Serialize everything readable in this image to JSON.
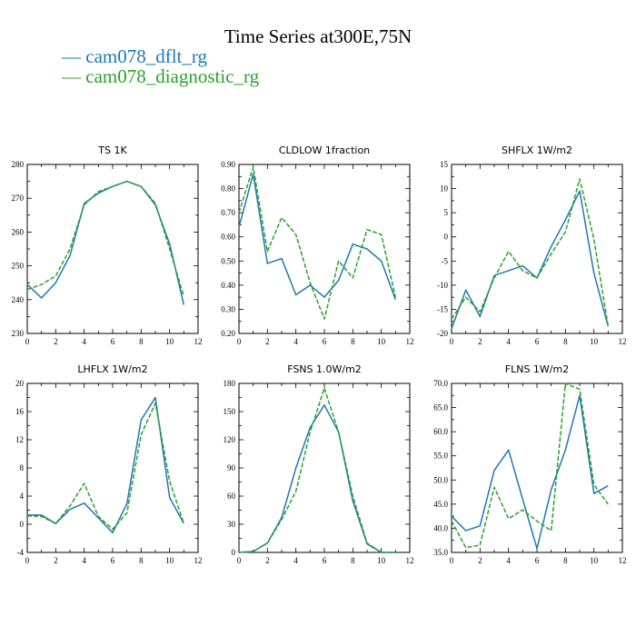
{
  "title": "Time Series at300E,75N",
  "legend": [
    {
      "label": "— cam078_dflt_rg",
      "color": "#1f77b4"
    },
    {
      "label": "— cam078_diagnostic_rg",
      "color": "#2ca02c"
    }
  ],
  "chart_data": [
    {
      "type": "line",
      "title": "TS   1K",
      "xlim": [
        0,
        12
      ],
      "xticks": [
        "0",
        "2",
        "4",
        "6",
        "8",
        "10",
        "12"
      ],
      "ylim": [
        230,
        280
      ],
      "yticks": [
        "230",
        "240",
        "250",
        "260",
        "270",
        "280"
      ],
      "x": [
        0,
        1,
        2,
        3,
        4,
        5,
        6,
        7,
        8,
        9,
        10,
        11
      ],
      "series": [
        {
          "name": "cam078_dflt_rg",
          "color": "#1f77b4",
          "dash": "solid",
          "values": [
            244.5,
            240.5,
            245,
            253,
            268.5,
            271.5,
            273.5,
            275,
            273.5,
            268,
            256.5,
            238.5
          ]
        },
        {
          "name": "cam078_diagnostic_rg",
          "color": "#2ca02c",
          "dash": "dashed",
          "values": [
            243,
            244.5,
            247,
            255,
            268,
            272,
            273.5,
            275,
            273.5,
            268.5,
            255,
            241
          ]
        }
      ]
    },
    {
      "type": "line",
      "title": "CLDLOW   1fraction",
      "xlim": [
        0,
        12
      ],
      "xticks": [
        "0",
        "2",
        "4",
        "6",
        "8",
        "10",
        "12"
      ],
      "ylim": [
        0.2,
        0.9
      ],
      "yticks": [
        "0.20",
        "0.30",
        "0.40",
        "0.50",
        "0.60",
        "0.70",
        "0.80",
        "0.90"
      ],
      "x": [
        0,
        1,
        2,
        3,
        4,
        5,
        6,
        7,
        8,
        9,
        10,
        11
      ],
      "series": [
        {
          "name": "cam078_dflt_rg",
          "color": "#1f77b4",
          "dash": "solid",
          "values": [
            0.64,
            0.86,
            0.49,
            0.51,
            0.36,
            0.4,
            0.35,
            0.42,
            0.57,
            0.55,
            0.5,
            0.34
          ]
        },
        {
          "name": "cam078_diagnostic_rg",
          "color": "#2ca02c",
          "dash": "dashed",
          "values": [
            0.7,
            0.89,
            0.54,
            0.68,
            0.61,
            0.41,
            0.26,
            0.5,
            0.43,
            0.63,
            0.61,
            0.35
          ]
        }
      ]
    },
    {
      "type": "line",
      "title": "SHFLX   1W/m2",
      "xlim": [
        0,
        12
      ],
      "xticks": [
        "0",
        "2",
        "4",
        "6",
        "8",
        "10",
        "12"
      ],
      "ylim": [
        -20,
        15
      ],
      "yticks": [
        "-20",
        "-15",
        "-10",
        "-5",
        "0",
        "5",
        "10",
        "15"
      ],
      "x": [
        0,
        1,
        2,
        3,
        4,
        5,
        6,
        7,
        8,
        9,
        10,
        11
      ],
      "series": [
        {
          "name": "cam078_dflt_rg",
          "color": "#1f77b4",
          "dash": "solid",
          "values": [
            -19,
            -11,
            -16.5,
            -8,
            -7,
            -6,
            -8.5,
            -2,
            3.5,
            9.5,
            -7.5,
            -18.5
          ]
        },
        {
          "name": "cam078_diagnostic_rg",
          "color": "#2ca02c",
          "dash": "dashed",
          "values": [
            -17,
            -12.5,
            -15.5,
            -8.5,
            -3,
            -7,
            -8.5,
            -3.5,
            1,
            12,
            -0.5,
            -18.5
          ]
        }
      ]
    },
    {
      "type": "line",
      "title": "LHFLX   1W/m2",
      "xlim": [
        0,
        12
      ],
      "xticks": [
        "0",
        "2",
        "4",
        "6",
        "8",
        "10",
        "12"
      ],
      "ylim": [
        -4,
        20
      ],
      "yticks": [
        "-4",
        "0",
        "4",
        "8",
        "12",
        "16",
        "20"
      ],
      "x": [
        0,
        1,
        2,
        3,
        4,
        5,
        6,
        7,
        8,
        9,
        10,
        11
      ],
      "series": [
        {
          "name": "cam078_dflt_rg",
          "color": "#1f77b4",
          "dash": "solid",
          "values": [
            1.3,
            1.3,
            0.1,
            2.1,
            3,
            0.9,
            -1.2,
            2.9,
            14.8,
            18,
            3.8,
            0.1
          ]
        },
        {
          "name": "cam078_diagnostic_rg",
          "color": "#2ca02c",
          "dash": "dashed",
          "values": [
            1.2,
            1.1,
            0.1,
            2.6,
            5.8,
            1.1,
            -0.7,
            1.6,
            12.7,
            17.2,
            6.1,
            0.1
          ]
        }
      ]
    },
    {
      "type": "line",
      "title": "FSNS   1.0W/m2",
      "xlim": [
        0,
        12
      ],
      "xticks": [
        "0",
        "2",
        "4",
        "6",
        "8",
        "10",
        "12"
      ],
      "ylim": [
        0,
        180
      ],
      "yticks": [
        "0",
        "30",
        "60",
        "90",
        "120",
        "150",
        "180"
      ],
      "x": [
        0,
        1,
        2,
        3,
        4,
        5,
        6,
        7,
        8,
        9,
        10,
        11
      ],
      "series": [
        {
          "name": "cam078_dflt_rg",
          "color": "#1f77b4",
          "dash": "solid",
          "values": [
            0,
            1,
            10,
            37,
            90,
            133,
            157,
            128,
            55,
            9,
            0,
            0
          ]
        },
        {
          "name": "cam078_diagnostic_rg",
          "color": "#2ca02c",
          "dash": "dashed",
          "values": [
            0,
            1,
            10,
            35,
            65,
            128,
            175,
            128,
            60,
            10,
            0,
            0
          ]
        }
      ]
    },
    {
      "type": "line",
      "title": "FLNS   1W/m2",
      "xlim": [
        0,
        12
      ],
      "xticks": [
        "0",
        "2",
        "4",
        "6",
        "8",
        "10",
        "12"
      ],
      "ylim": [
        35,
        70
      ],
      "yticks": [
        "35.0",
        "40.0",
        "45.0",
        "50.0",
        "55.0",
        "60.0",
        "65.0",
        "70.0"
      ],
      "x": [
        0,
        1,
        2,
        3,
        4,
        5,
        6,
        7,
        8,
        9,
        10,
        11
      ],
      "series": [
        {
          "name": "cam078_dflt_rg",
          "color": "#1f77b4",
          "dash": "solid",
          "values": [
            42.5,
            39.5,
            40.5,
            52,
            56.2,
            46,
            35.8,
            48,
            56.2,
            67.5,
            47.2,
            48.8
          ]
        },
        {
          "name": "cam078_diagnostic_rg",
          "color": "#2ca02c",
          "dash": "dashed",
          "values": [
            41.5,
            36,
            36.5,
            48.5,
            42,
            43.8,
            41.5,
            39.5,
            70,
            68.8,
            49,
            45
          ]
        }
      ]
    }
  ]
}
